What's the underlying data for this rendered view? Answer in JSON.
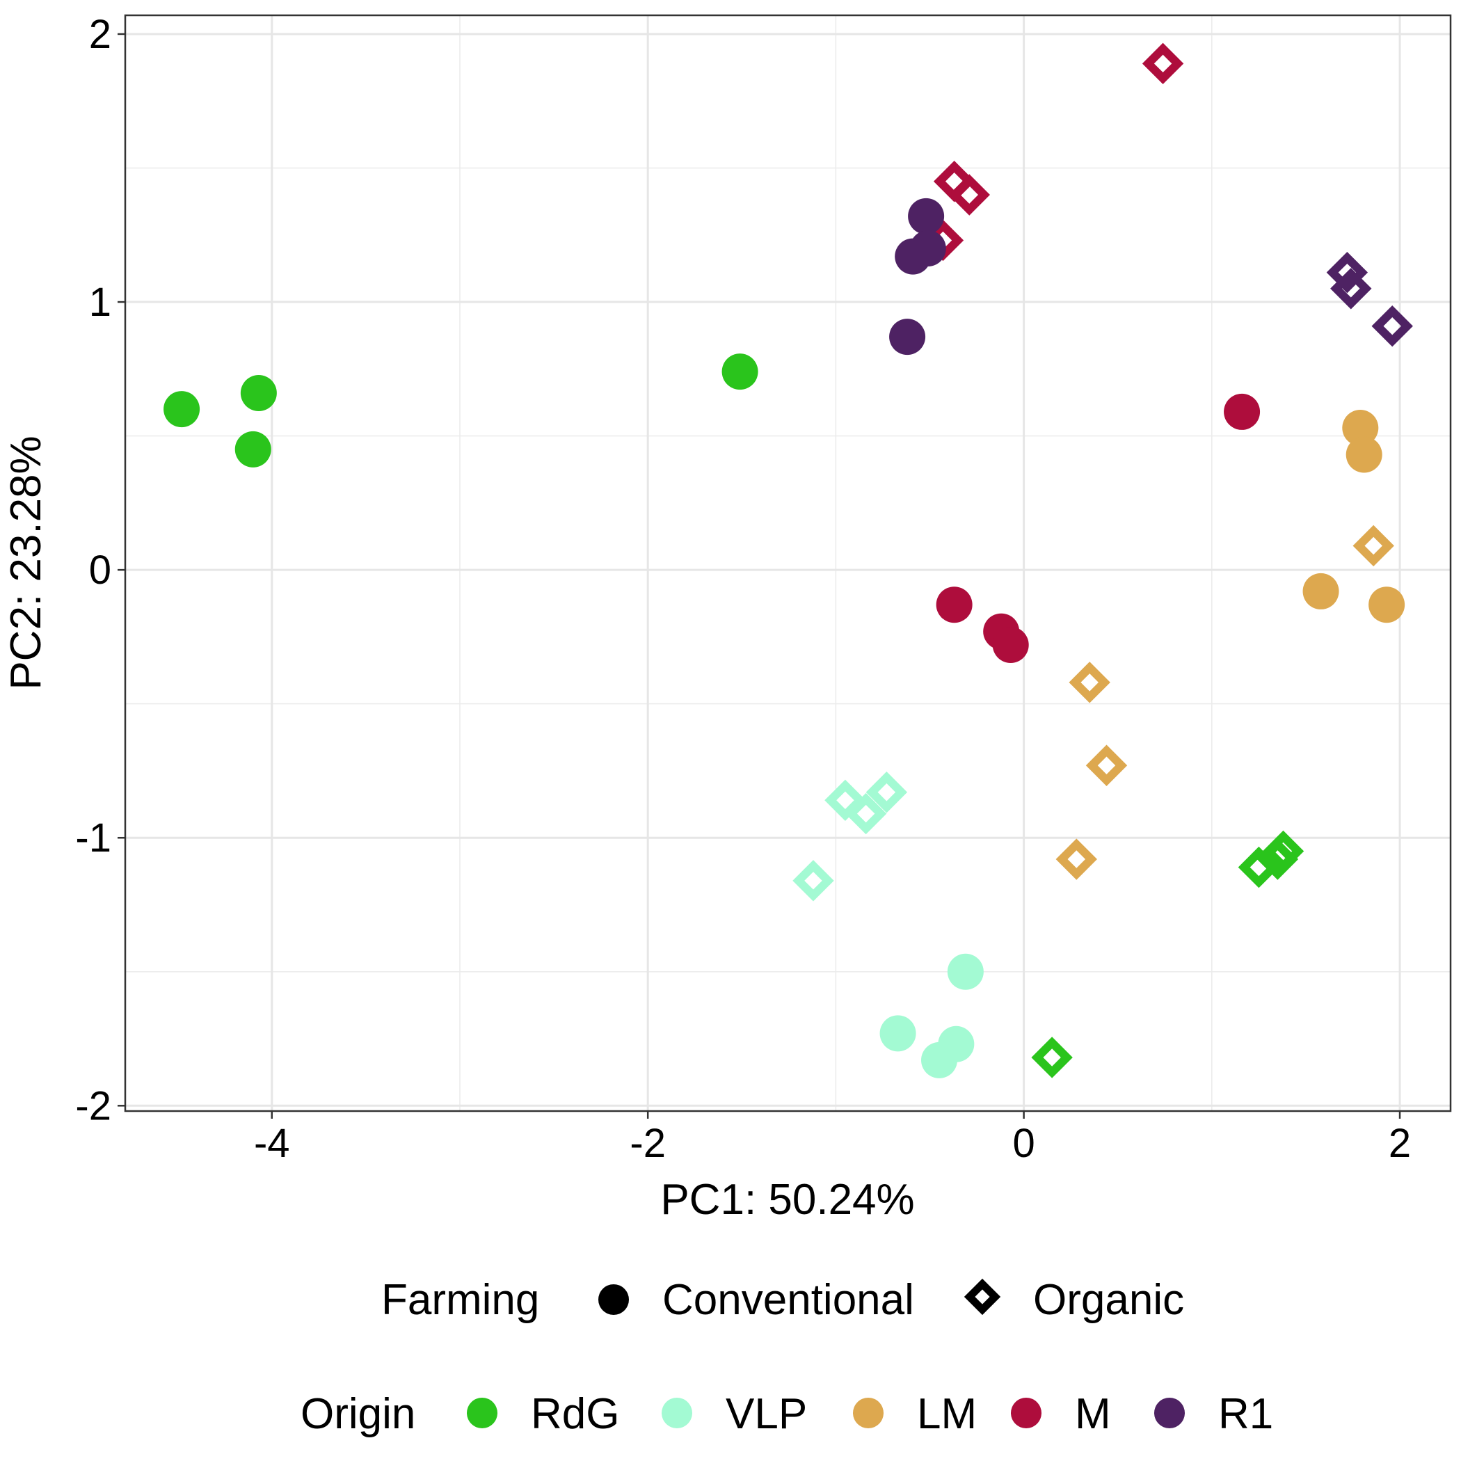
{
  "chart_data": {
    "type": "scatter",
    "title": "",
    "xlabel": "PC1: 50.24%",
    "ylabel": "PC2: 23.28%",
    "xlim": [
      -4.78,
      2.27
    ],
    "ylim": [
      -2.02,
      2.07
    ],
    "x_ticks": [
      -4,
      -2,
      0,
      2
    ],
    "y_ticks": [
      -2,
      -1,
      0,
      1,
      2
    ],
    "grid": true,
    "legend_position": "bottom",
    "shape_legend": {
      "title": "Farming",
      "entries": [
        {
          "label": "Conventional",
          "shape": "circle"
        },
        {
          "label": "Organic",
          "shape": "diamond-open"
        }
      ]
    },
    "color_legend": {
      "title": "Origin",
      "entries": [
        {
          "label": "RdG",
          "color": "#2AC41C"
        },
        {
          "label": "VLP",
          "color": "#A3FAD3"
        },
        {
          "label": "LM",
          "color": "#DDA84F"
        },
        {
          "label": "M",
          "color": "#AE0D3C"
        },
        {
          "label": "R1",
          "color": "#4E2263"
        }
      ]
    },
    "points": [
      {
        "x": -4.48,
        "y": 0.6,
        "origin": "RdG",
        "farming": "Conventional"
      },
      {
        "x": -4.07,
        "y": 0.66,
        "origin": "RdG",
        "farming": "Conventional"
      },
      {
        "x": -4.1,
        "y": 0.45,
        "origin": "RdG",
        "farming": "Conventional"
      },
      {
        "x": -1.51,
        "y": 0.74,
        "origin": "RdG",
        "farming": "Conventional"
      },
      {
        "x": 0.15,
        "y": -1.82,
        "origin": "RdG",
        "farming": "Organic"
      },
      {
        "x": 1.25,
        "y": -1.11,
        "origin": "RdG",
        "farming": "Organic"
      },
      {
        "x": 1.35,
        "y": -1.08,
        "origin": "RdG",
        "farming": "Organic"
      },
      {
        "x": 1.38,
        "y": -1.05,
        "origin": "RdG",
        "farming": "Organic"
      },
      {
        "x": -0.31,
        "y": -1.5,
        "origin": "VLP",
        "farming": "Conventional"
      },
      {
        "x": -0.67,
        "y": -1.73,
        "origin": "VLP",
        "farming": "Conventional"
      },
      {
        "x": -0.36,
        "y": -1.77,
        "origin": "VLP",
        "farming": "Conventional"
      },
      {
        "x": -0.45,
        "y": -1.83,
        "origin": "VLP",
        "farming": "Conventional"
      },
      {
        "x": -1.12,
        "y": -1.16,
        "origin": "VLP",
        "farming": "Organic"
      },
      {
        "x": -0.95,
        "y": -0.86,
        "origin": "VLP",
        "farming": "Organic"
      },
      {
        "x": -0.84,
        "y": -0.91,
        "origin": "VLP",
        "farming": "Organic"
      },
      {
        "x": -0.73,
        "y": -0.83,
        "origin": "VLP",
        "farming": "Organic"
      },
      {
        "x": 1.79,
        "y": 0.53,
        "origin": "LM",
        "farming": "Conventional"
      },
      {
        "x": 1.81,
        "y": 0.43,
        "origin": "LM",
        "farming": "Conventional"
      },
      {
        "x": 1.58,
        "y": -0.08,
        "origin": "LM",
        "farming": "Conventional"
      },
      {
        "x": 1.93,
        "y": -0.13,
        "origin": "LM",
        "farming": "Conventional"
      },
      {
        "x": 1.86,
        "y": 0.09,
        "origin": "LM",
        "farming": "Organic"
      },
      {
        "x": 0.35,
        "y": -0.42,
        "origin": "LM",
        "farming": "Organic"
      },
      {
        "x": 0.44,
        "y": -0.73,
        "origin": "LM",
        "farming": "Organic"
      },
      {
        "x": 0.28,
        "y": -1.08,
        "origin": "LM",
        "farming": "Organic"
      },
      {
        "x": 1.16,
        "y": 0.59,
        "origin": "M",
        "farming": "Conventional"
      },
      {
        "x": -0.37,
        "y": -0.13,
        "origin": "M",
        "farming": "Conventional"
      },
      {
        "x": -0.12,
        "y": -0.23,
        "origin": "M",
        "farming": "Conventional"
      },
      {
        "x": -0.07,
        "y": -0.28,
        "origin": "M",
        "farming": "Conventional"
      },
      {
        "x": 0.74,
        "y": 1.89,
        "origin": "M",
        "farming": "Organic"
      },
      {
        "x": -0.37,
        "y": 1.45,
        "origin": "M",
        "farming": "Organic"
      },
      {
        "x": -0.29,
        "y": 1.4,
        "origin": "M",
        "farming": "Organic"
      },
      {
        "x": -0.43,
        "y": 1.23,
        "origin": "M",
        "farming": "Organic"
      },
      {
        "x": -0.52,
        "y": 1.32,
        "origin": "R1",
        "farming": "Conventional"
      },
      {
        "x": -0.51,
        "y": 1.2,
        "origin": "R1",
        "farming": "Conventional"
      },
      {
        "x": -0.59,
        "y": 1.17,
        "origin": "R1",
        "farming": "Conventional"
      },
      {
        "x": -0.62,
        "y": 0.87,
        "origin": "R1",
        "farming": "Conventional"
      },
      {
        "x": 1.72,
        "y": 1.11,
        "origin": "R1",
        "farming": "Organic"
      },
      {
        "x": 1.74,
        "y": 1.05,
        "origin": "R1",
        "farming": "Organic"
      },
      {
        "x": 1.96,
        "y": 0.91,
        "origin": "R1",
        "farming": "Organic"
      }
    ]
  }
}
